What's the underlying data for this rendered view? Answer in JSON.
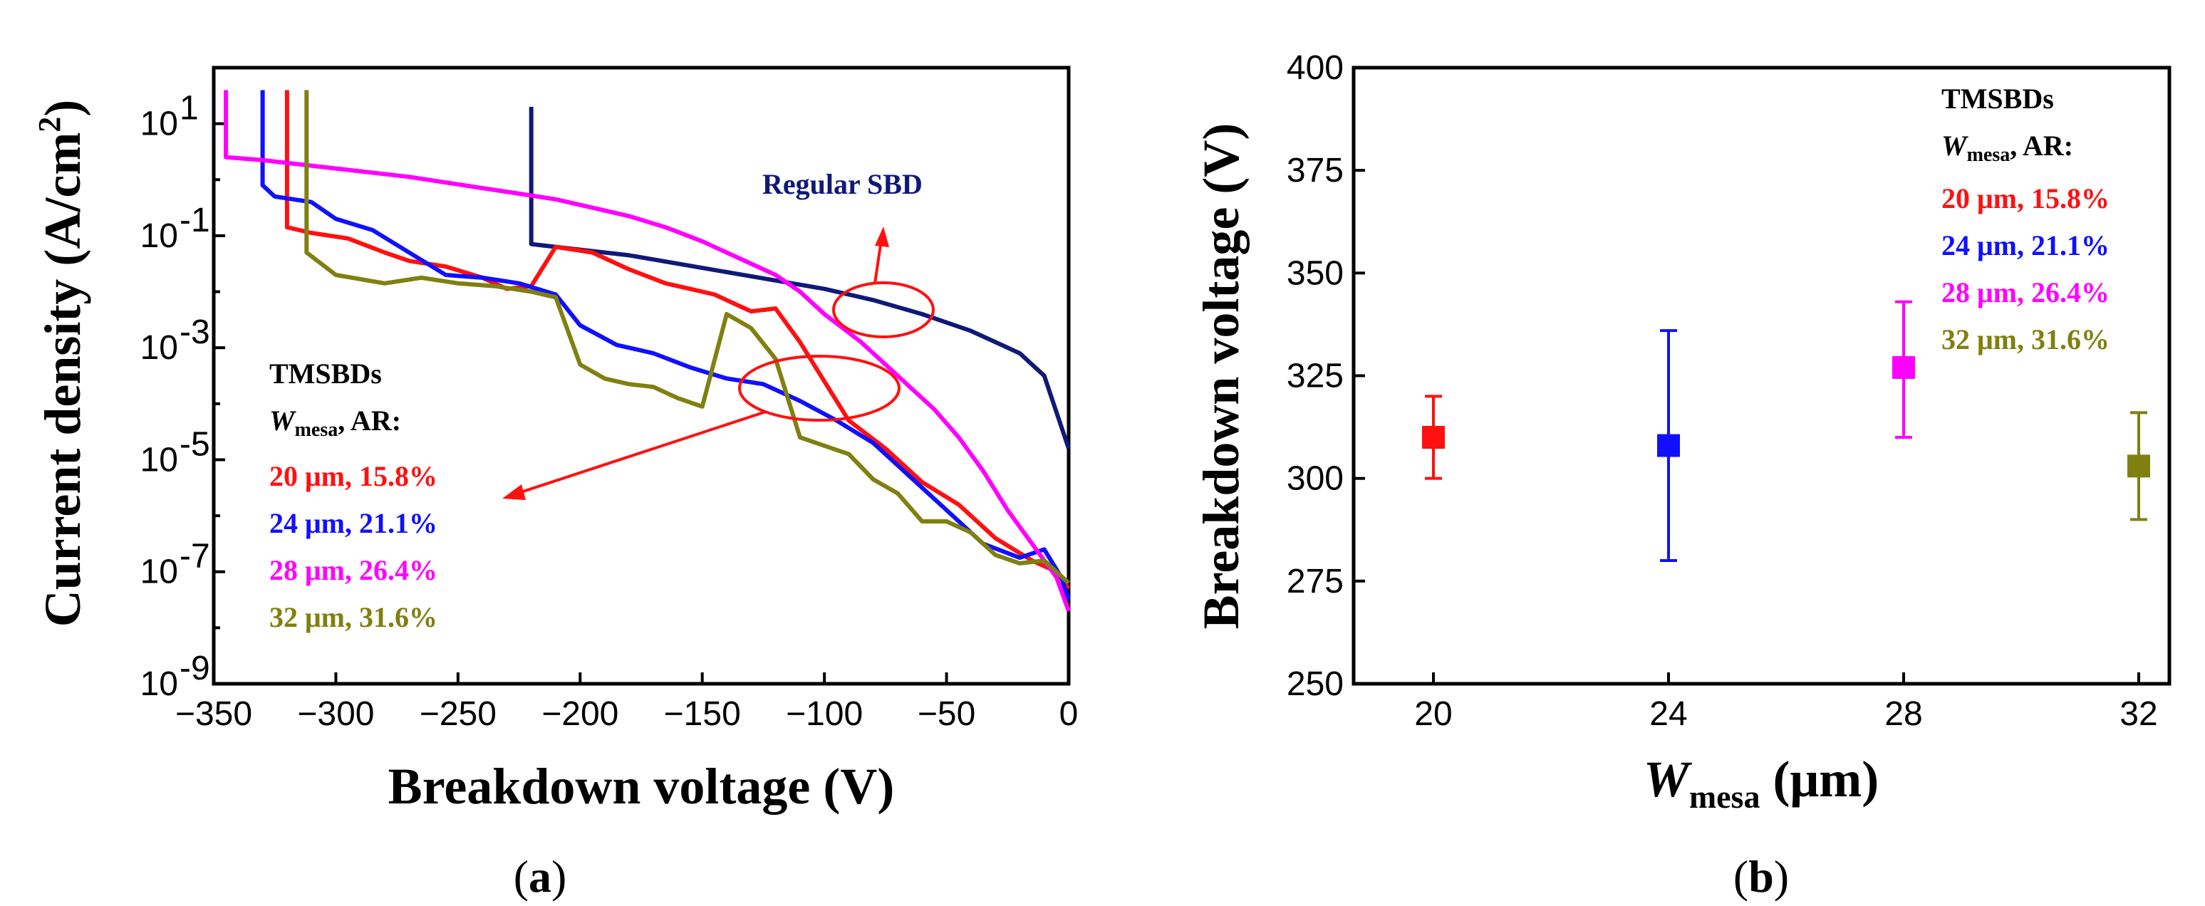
{
  "chart_data": [
    {
      "panel": "a",
      "type": "line",
      "caption": "(a)",
      "caption_letter": "a",
      "xlabel": "Breakdown voltage (V)",
      "ylabel_main": "Current density (A/cm",
      "ylabel_sup": "2",
      "ylabel_end": ")",
      "xlim": [
        -350,
        0
      ],
      "ylim_log10": [
        -9,
        2
      ],
      "y_scale": "log",
      "xticks": [
        -350,
        -300,
        -250,
        -200,
        -150,
        -100,
        -50,
        0
      ],
      "xtick_labels": [
        "−350",
        "−300",
        "−250",
        "−200",
        "−150",
        "−100",
        "−50",
        "0"
      ],
      "yticks_exp": [
        -9,
        -7,
        -5,
        -3,
        -1,
        1
      ],
      "ytick_base": "10",
      "ytick_exp_labels": [
        "-9",
        "-7",
        "-5",
        "-3",
        "-1",
        "1"
      ],
      "annotation": "Regular SBD",
      "legend": {
        "title": "TMSBDs",
        "sub_w": "W",
        "sub_mesa": "mesa",
        "sub_rest": ", AR:",
        "entries": [
          "20 μm, 15.8%",
          "24 μm, 21.1%",
          "28 μm, 26.4%",
          "32 μm, 31.6%"
        ]
      },
      "series": [
        {
          "name": "Regular SBD",
          "color": "#101878",
          "points": [
            [
              -220,
              1.3
            ],
            [
              -220,
              -1.15
            ],
            [
              -200,
              -1.25
            ],
            [
              -180,
              -1.35
            ],
            [
              -160,
              -1.5
            ],
            [
              -140,
              -1.65
            ],
            [
              -120,
              -1.8
            ],
            [
              -100,
              -1.95
            ],
            [
              -80,
              -2.15
            ],
            [
              -60,
              -2.4
            ],
            [
              -40,
              -2.7
            ],
            [
              -20,
              -3.1
            ],
            [
              -10,
              -3.5
            ],
            [
              0,
              -4.8
            ]
          ]
        },
        {
          "name": "20 μm, 15.8%",
          "color": "#ff1010",
          "points": [
            [
              -320,
              1.6
            ],
            [
              -320,
              -0.85
            ],
            [
              -310,
              -0.95
            ],
            [
              -295,
              -1.05
            ],
            [
              -280,
              -1.3
            ],
            [
              -270,
              -1.45
            ],
            [
              -255,
              -1.55
            ],
            [
              -240,
              -1.75
            ],
            [
              -230,
              -1.95
            ],
            [
              -220,
              -1.9
            ],
            [
              -210,
              -1.2
            ],
            [
              -195,
              -1.3
            ],
            [
              -180,
              -1.6
            ],
            [
              -165,
              -1.85
            ],
            [
              -155,
              -1.95
            ],
            [
              -145,
              -2.05
            ],
            [
              -130,
              -2.35
            ],
            [
              -120,
              -2.3
            ],
            [
              -110,
              -2.9
            ],
            [
              -100,
              -3.6
            ],
            [
              -90,
              -4.3
            ],
            [
              -75,
              -4.8
            ],
            [
              -60,
              -5.4
            ],
            [
              -45,
              -5.8
            ],
            [
              -30,
              -6.4
            ],
            [
              -15,
              -6.8
            ],
            [
              -5,
              -7.0
            ],
            [
              0,
              -7.3
            ]
          ]
        },
        {
          "name": "24 μm, 21.1%",
          "color": "#1010ff",
          "points": [
            [
              -330,
              1.6
            ],
            [
              -330,
              -0.1
            ],
            [
              -325,
              -0.3
            ],
            [
              -310,
              -0.4
            ],
            [
              -300,
              -0.7
            ],
            [
              -285,
              -0.9
            ],
            [
              -270,
              -1.3
            ],
            [
              -255,
              -1.7
            ],
            [
              -240,
              -1.75
            ],
            [
              -225,
              -1.85
            ],
            [
              -210,
              -2.05
            ],
            [
              -200,
              -2.6
            ],
            [
              -185,
              -2.95
            ],
            [
              -170,
              -3.1
            ],
            [
              -155,
              -3.35
            ],
            [
              -140,
              -3.55
            ],
            [
              -125,
              -3.65
            ],
            [
              -110,
              -3.95
            ],
            [
              -95,
              -4.3
            ],
            [
              -80,
              -4.7
            ],
            [
              -65,
              -5.3
            ],
            [
              -50,
              -5.9
            ],
            [
              -35,
              -6.5
            ],
            [
              -20,
              -6.75
            ],
            [
              -10,
              -6.6
            ],
            [
              -3,
              -7.1
            ],
            [
              0,
              -7.5
            ]
          ]
        },
        {
          "name": "28 μm, 26.4%",
          "color": "#ff00ff",
          "points": [
            [
              -345,
              1.6
            ],
            [
              -345,
              0.4
            ],
            [
              -330,
              0.35
            ],
            [
              -310,
              0.25
            ],
            [
              -290,
              0.15
            ],
            [
              -270,
              0.05
            ],
            [
              -255,
              -0.05
            ],
            [
              -240,
              -0.15
            ],
            [
              -225,
              -0.25
            ],
            [
              -210,
              -0.35
            ],
            [
              -195,
              -0.5
            ],
            [
              -180,
              -0.65
            ],
            [
              -165,
              -0.85
            ],
            [
              -150,
              -1.1
            ],
            [
              -135,
              -1.4
            ],
            [
              -120,
              -1.7
            ],
            [
              -110,
              -2.0
            ],
            [
              -100,
              -2.4
            ],
            [
              -85,
              -2.9
            ],
            [
              -70,
              -3.5
            ],
            [
              -55,
              -4.1
            ],
            [
              -45,
              -4.6
            ],
            [
              -35,
              -5.2
            ],
            [
              -25,
              -5.9
            ],
            [
              -15,
              -6.5
            ],
            [
              -5,
              -7.1
            ],
            [
              0,
              -7.7
            ]
          ]
        },
        {
          "name": "32 μm, 31.6%",
          "color": "#808010",
          "points": [
            [
              -312,
              1.6
            ],
            [
              -312,
              -1.3
            ],
            [
              -300,
              -1.7
            ],
            [
              -280,
              -1.85
            ],
            [
              -265,
              -1.75
            ],
            [
              -250,
              -1.85
            ],
            [
              -235,
              -1.9
            ],
            [
              -220,
              -2.0
            ],
            [
              -210,
              -2.1
            ],
            [
              -200,
              -3.3
            ],
            [
              -190,
              -3.55
            ],
            [
              -180,
              -3.65
            ],
            [
              -170,
              -3.7
            ],
            [
              -160,
              -3.9
            ],
            [
              -150,
              -4.05
            ],
            [
              -140,
              -2.4
            ],
            [
              -130,
              -2.65
            ],
            [
              -120,
              -3.2
            ],
            [
              -110,
              -4.6
            ],
            [
              -100,
              -4.75
            ],
            [
              -90,
              -4.9
            ],
            [
              -80,
              -5.35
            ],
            [
              -70,
              -5.6
            ],
            [
              -60,
              -6.1
            ],
            [
              -50,
              -6.1
            ],
            [
              -40,
              -6.3
            ],
            [
              -30,
              -6.7
            ],
            [
              -20,
              -6.85
            ],
            [
              -10,
              -6.8
            ],
            [
              0,
              -7.2
            ]
          ]
        }
      ]
    },
    {
      "panel": "b",
      "type": "scatter",
      "caption": "(b)",
      "caption_letter": "b",
      "ylabel": "Breakdown voltage (V)",
      "xlabel_w": "W",
      "xlabel_mesa": "mesa",
      "xlabel_rest": "(μm)",
      "categories": [
        "20",
        "24",
        "28",
        "32"
      ],
      "ylim": [
        250,
        400
      ],
      "yticks": [
        250,
        275,
        300,
        325,
        350,
        375,
        400
      ],
      "legend": {
        "title": "TMSBDs",
        "sub_w": "W",
        "sub_mesa": "mesa",
        "sub_rest": ", AR:",
        "entries": [
          "20 μm, 15.8%",
          "24 μm, 21.1%",
          "28 μm, 26.4%",
          "32 μm, 31.6%"
        ]
      },
      "series": [
        {
          "name": "20 μm, 15.8%",
          "color": "#ff1010",
          "mean": 310,
          "low": 300,
          "high": 320
        },
        {
          "name": "24 μm, 21.1%",
          "color": "#1010ff",
          "mean": 308,
          "low": 280,
          "high": 336
        },
        {
          "name": "28 μm, 26.4%",
          "color": "#ff00ff",
          "mean": 327,
          "low": 310,
          "high": 343
        },
        {
          "name": "32 μm, 31.6%",
          "color": "#808010",
          "mean": 303,
          "low": 290,
          "high": 316
        }
      ]
    }
  ]
}
